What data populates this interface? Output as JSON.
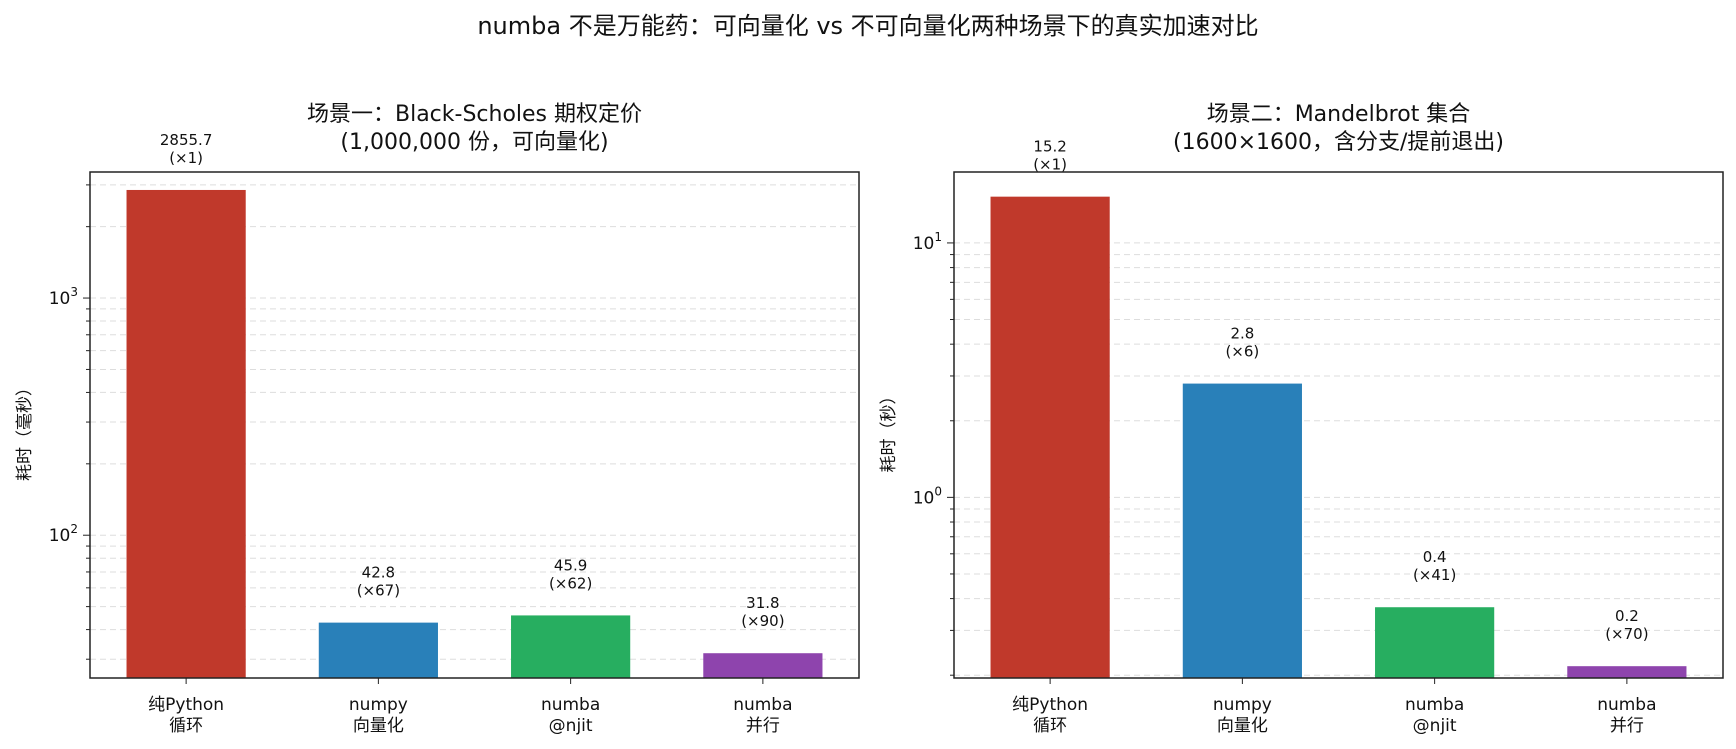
{
  "suptitle": "numba 不是万能药：可向量化 vs 不可向量化两种场景下的真实加速对比",
  "colors": {
    "pure_python": "#c0392b",
    "numpy": "#2980b9",
    "numba_njit": "#27ae60",
    "numba_parallel": "#8e44ad",
    "grid": "#dddddd",
    "frame": "#222222"
  },
  "chart_data": [
    {
      "type": "bar",
      "title": "场景一：Black-Scholes 期权定价\n(1,000,000 份，可向量化)",
      "xlabel": "",
      "ylabel": "耗时（毫秒）",
      "yscale": "log",
      "ylim": [
        25,
        3400
      ],
      "yticks": [
        {
          "value": 100,
          "base": "10",
          "exp": "2"
        },
        {
          "value": 1000,
          "base": "10",
          "exp": "3"
        }
      ],
      "grid": true,
      "categories": [
        "纯Python\n循环",
        "numpy\n向量化",
        "numba\n@njit",
        "numba\n并行"
      ],
      "values": [
        2855.7,
        42.8,
        45.9,
        31.8
      ],
      "value_labels": [
        "2855.7",
        "42.8",
        "45.9",
        "31.8"
      ],
      "speedup_labels": [
        "(×1)",
        "(×67)",
        "(×62)",
        "(×90)"
      ],
      "color_keys": [
        "pure_python",
        "numpy",
        "numba_njit",
        "numba_parallel"
      ]
    },
    {
      "type": "bar",
      "title": "场景二：Mandelbrot 集合\n(1600×1600，含分支/提前退出)",
      "xlabel": "",
      "ylabel": "耗时（秒）",
      "yscale": "log",
      "ylim": [
        0.195,
        19.0
      ],
      "yticks": [
        {
          "value": 1,
          "base": "10",
          "exp": "0"
        },
        {
          "value": 10,
          "base": "10",
          "exp": "1"
        }
      ],
      "grid": true,
      "categories": [
        "纯Python\n循环",
        "numpy\n向量化",
        "numba\n@njit",
        "numba\n并行"
      ],
      "values": [
        15.2,
        2.8,
        0.37,
        0.217
      ],
      "value_labels": [
        "15.2",
        "2.8",
        "0.4",
        "0.2"
      ],
      "speedup_labels": [
        "(×1)",
        "(×6)",
        "(×41)",
        "(×70)"
      ],
      "color_keys": [
        "pure_python",
        "numpy",
        "numba_njit",
        "numba_parallel"
      ]
    }
  ]
}
